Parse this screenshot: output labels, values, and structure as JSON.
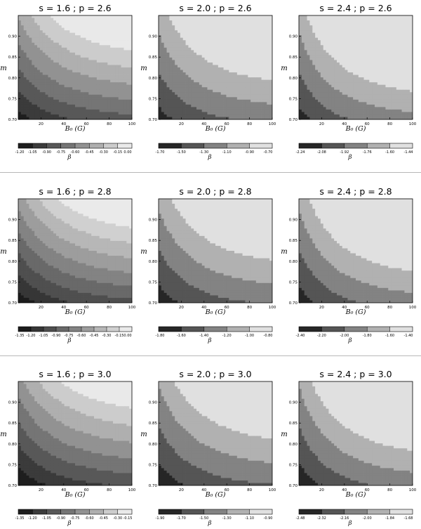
{
  "chart_data": [
    {
      "type": "heatmap",
      "title": "s = 1.6 ; p = 2.6",
      "xlabel": "B₀ (G)",
      "ylabel": "m",
      "cbar_label": "β",
      "xlim": [
        0,
        100
      ],
      "ylim": [
        0.7,
        0.95
      ],
      "xticks": [
        "20",
        "40",
        "60",
        "80",
        "100"
      ],
      "yticks": [
        "0.70",
        "0.75",
        "0.80",
        "0.85",
        "0.90"
      ],
      "value_range": [
        -1.2,
        0.0
      ],
      "levels": [
        "-1.20",
        "-1.05",
        "-0.90",
        "-0.75",
        "-0.60",
        "-0.45",
        "-0.30",
        "-0.15",
        "0.00"
      ]
    },
    {
      "type": "heatmap",
      "title": "s = 2.0 ; p = 2.6",
      "xlabel": "B₀ (G)",
      "ylabel": "m",
      "cbar_label": "β",
      "xlim": [
        0,
        100
      ],
      "ylim": [
        0.7,
        0.95
      ],
      "xticks": [
        "20",
        "40",
        "60",
        "80",
        "100"
      ],
      "yticks": [
        "0.70",
        "0.75",
        "0.80",
        "0.85",
        "0.90"
      ],
      "value_range": [
        -1.7,
        -0.6
      ],
      "levels": [
        "-1.70",
        "-1.50",
        "-1.30",
        "-1.10",
        "-0.90",
        "-0.70"
      ]
    },
    {
      "type": "heatmap",
      "title": "s = 2.4 ; p = 2.6",
      "xlabel": "B₀ (G)",
      "ylabel": "m",
      "cbar_label": "β",
      "xlim": [
        0,
        100
      ],
      "ylim": [
        0.7,
        0.95
      ],
      "xticks": [
        "20",
        "40",
        "60",
        "80",
        "100"
      ],
      "yticks": [
        "0.70",
        "0.75",
        "0.80",
        "0.85",
        "0.90"
      ],
      "value_range": [
        -2.24,
        -1.36
      ],
      "levels": [
        "-2.24",
        "-2.08",
        "-1.92",
        "-1.76",
        "-1.60",
        "-1.44"
      ]
    },
    {
      "type": "heatmap",
      "title": "s = 1.6 ; p = 2.8",
      "xlabel": "B₀ (G)",
      "ylabel": "m",
      "cbar_label": "β",
      "xlim": [
        0,
        100
      ],
      "ylim": [
        0.7,
        0.95
      ],
      "xticks": [
        "20",
        "40",
        "60",
        "80",
        "100"
      ],
      "yticks": [
        "0.70",
        "0.75",
        "0.80",
        "0.85",
        "0.90"
      ],
      "value_range": [
        -1.35,
        0.0
      ],
      "levels": [
        "-1.35",
        "-1.20",
        "-1.05",
        "-0.90",
        "-0.75",
        "-0.60",
        "-0.45",
        "-0.30",
        "-0.15",
        "0.00"
      ]
    },
    {
      "type": "heatmap",
      "title": "s = 2.0 ; p = 2.8",
      "xlabel": "B₀ (G)",
      "ylabel": "m",
      "cbar_label": "β",
      "xlim": [
        0,
        100
      ],
      "ylim": [
        0.7,
        0.95
      ],
      "xticks": [
        "20",
        "40",
        "60",
        "80",
        "100"
      ],
      "yticks": [
        "0.70",
        "0.75",
        "0.80",
        "0.85",
        "0.90"
      ],
      "value_range": [
        -1.8,
        -0.7
      ],
      "levels": [
        "-1.80",
        "-1.60",
        "-1.40",
        "-1.20",
        "-1.00",
        "-0.80"
      ]
    },
    {
      "type": "heatmap",
      "title": "s = 2.4 ; p = 2.8",
      "xlabel": "B₀ (G)",
      "ylabel": "m",
      "cbar_label": "β",
      "xlim": [
        0,
        100
      ],
      "ylim": [
        0.7,
        0.95
      ],
      "xticks": [
        "20",
        "40",
        "60",
        "80",
        "100"
      ],
      "yticks": [
        "0.70",
        "0.75",
        "0.80",
        "0.85",
        "0.90"
      ],
      "value_range": [
        -2.4,
        -1.4
      ],
      "levels": [
        "-2.40",
        "-2.20",
        "-2.00",
        "-1.80",
        "-1.60",
        "-1.40"
      ]
    },
    {
      "type": "heatmap",
      "title": "s = 1.6 ; p = 3.0",
      "xlabel": "B₀ (G)",
      "ylabel": "m",
      "cbar_label": "β",
      "xlim": [
        0,
        100
      ],
      "ylim": [
        0.7,
        0.95
      ],
      "xticks": [
        "20",
        "40",
        "60",
        "80",
        "100"
      ],
      "yticks": [
        "0.70",
        "0.75",
        "0.80",
        "0.85",
        "0.90"
      ],
      "value_range": [
        -1.35,
        -0.15
      ],
      "levels": [
        "-1.35",
        "-1.20",
        "-1.05",
        "-0.90",
        "-0.75",
        "-0.60",
        "-0.45",
        "-0.30",
        "-0.15"
      ]
    },
    {
      "type": "heatmap",
      "title": "s = 2.0 ; p = 3.0",
      "xlabel": "B₀ (G)",
      "ylabel": "m",
      "cbar_label": "β",
      "xlim": [
        0,
        100
      ],
      "ylim": [
        0.7,
        0.95
      ],
      "xticks": [
        "20",
        "40",
        "60",
        "80",
        "100"
      ],
      "yticks": [
        "0.70",
        "0.75",
        "0.80",
        "0.85",
        "0.90"
      ],
      "value_range": [
        -1.9,
        -0.8
      ],
      "levels": [
        "-1.90",
        "-1.70",
        "-1.50",
        "-1.30",
        "-1.10",
        "-0.90"
      ]
    },
    {
      "type": "heatmap",
      "title": "s = 2.4 ; p = 3.0",
      "xlabel": "B₀ (G)",
      "ylabel": "m",
      "cbar_label": "β",
      "xlim": [
        0,
        100
      ],
      "ylim": [
        0.7,
        0.95
      ],
      "xticks": [
        "20",
        "40",
        "60",
        "80",
        "100"
      ],
      "yticks": [
        "0.70",
        "0.75",
        "0.80",
        "0.85",
        "0.90"
      ],
      "value_range": [
        -2.48,
        -1.6
      ],
      "levels": [
        "-2.48",
        "-2.32",
        "-2.16",
        "-2.00",
        "-1.84",
        "-1.68"
      ]
    }
  ],
  "colors": {
    "low": "#0f0f0f",
    "high": "#f7f7f7",
    "contour_line": "#1a1a1a",
    "separator": "#b8b8b8"
  }
}
